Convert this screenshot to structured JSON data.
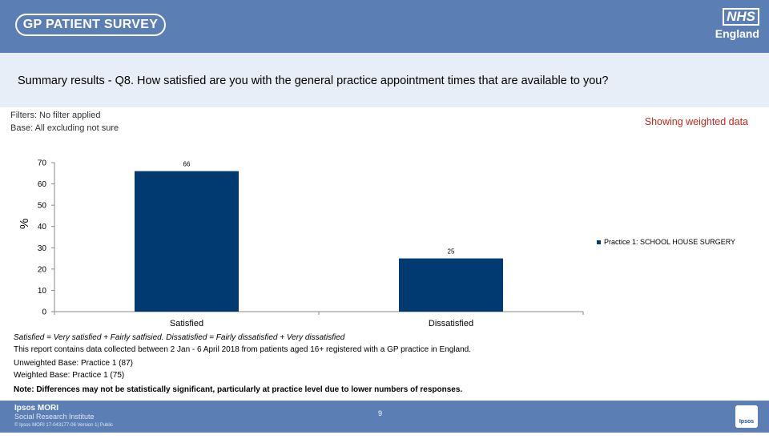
{
  "header": {
    "survey_logo": "GP PATIENT SURVEY",
    "nhs_logo": "NHS",
    "nhs_sub": "England",
    "title": "Summary results - Q8.  How satisfied are you with the general practice appointment times that are available to you?"
  },
  "meta": {
    "filters": "Filters: No filter applied",
    "base": "Base: All excluding not sure",
    "weighted": "Showing weighted data"
  },
  "colors": {
    "bar": "#003a70",
    "header": "#5b7fb5",
    "title_band": "#e8eef7",
    "weighted_text": "#c0281c"
  },
  "chart_data": {
    "type": "bar",
    "categories": [
      "Satisfied",
      "Dissatisfied"
    ],
    "series": [
      {
        "name": "Practice 1: SCHOOL HOUSE SURGERY",
        "values": [
          66,
          25
        ]
      }
    ],
    "data_labels": [
      "66",
      "25"
    ],
    "ylabel": "%",
    "xlabel": "",
    "ylim": [
      0,
      70
    ],
    "yticks": [
      0,
      10,
      20,
      30,
      40,
      50,
      60,
      70
    ],
    "legend": "right",
    "grid": false
  },
  "notes": {
    "definition": "Satisfied = Very satisfied + Fairly satfisied. Dissatisfied = Fairly dissatisfied + Very dissatisfied",
    "collection": "This report contains data collected between 2 Jan - 6 April 2018 from patients aged 16+ registered with a GP practice in England.",
    "unweighted": "Unweighted Base: Practice 1 (87)",
    "weighted": "Weighted Base: Practice 1 (75)",
    "note": "Note: Differences may not be statistically significant, particularly at practice level due to lower numbers of responses."
  },
  "footer": {
    "ipsos_line1": "Ipsos MORI",
    "ipsos_line2": "Social Research Institute",
    "ipsos_line3": "© Ipsos MORI      17-043177-06 Version 1| Public",
    "page_number": "9",
    "badge": "Ipsos"
  }
}
